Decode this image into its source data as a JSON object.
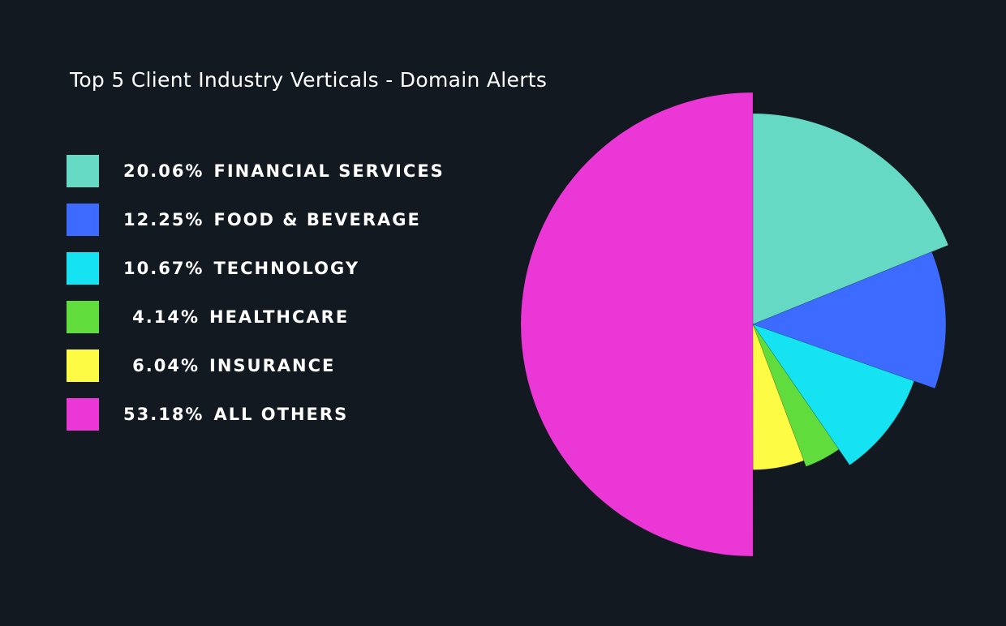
{
  "chart_data": {
    "type": "pie",
    "title": "Top 5 Client Industry Verticals - Domain Alerts",
    "legend_position": "left",
    "slices": [
      {
        "label": "FINANCIAL SERVICES",
        "percent_label": "20.06%",
        "value": 20.06,
        "color": "#66d9c4",
        "radius_scale": 1.0
      },
      {
        "label": "FOOD & BEVERAGE",
        "percent_label": "12.25%",
        "value": 12.25,
        "color": "#3d6bff",
        "radius_scale": 0.915
      },
      {
        "label": "TECHNOLOGY",
        "percent_label": "10.67%",
        "value": 10.67,
        "color": "#16e3f2",
        "radius_scale": 0.81
      },
      {
        "label": "HEALTHCARE",
        "percent_label": "4.14%",
        "value": 4.14,
        "color": "#60dc3c",
        "radius_scale": 0.72
      },
      {
        "label": "INSURANCE",
        "percent_label": "6.04%",
        "value": 6.04,
        "color": "#fdfb43",
        "radius_scale": 0.69
      },
      {
        "label": "ALL OTHERS",
        "percent_label": "53.18%",
        "value": 53.18,
        "color": "#ea37d5",
        "radius_scale": 1.1
      }
    ]
  }
}
